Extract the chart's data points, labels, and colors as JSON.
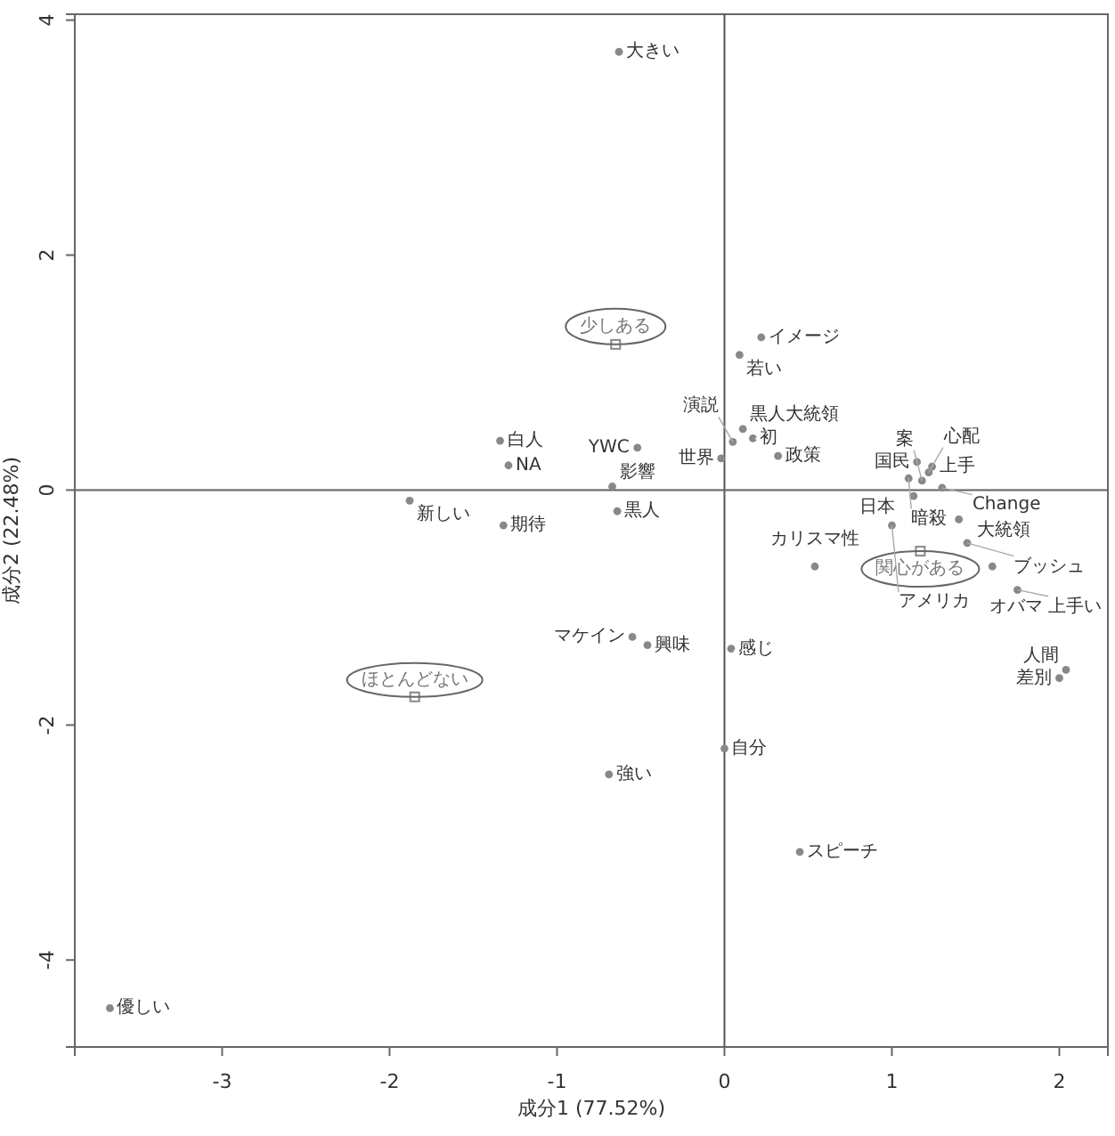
{
  "chart_data": {
    "type": "scatter",
    "xlabel": "成分1 (77.52%)",
    "ylabel": "成分2 (22.48%)",
    "xlim": [
      -3.88,
      2.29
    ],
    "ylim": [
      -4.74,
      4.05
    ],
    "xticks": [
      -3,
      -2,
      -1,
      0,
      1,
      2
    ],
    "yticks": [
      -4,
      -2,
      0,
      2,
      4
    ],
    "grid": false,
    "ref_lines": [
      {
        "axis": "x",
        "value": 0,
        "color": "#555555"
      },
      {
        "axis": "y",
        "value": 0,
        "color": "#606060"
      }
    ],
    "series": [
      {
        "color": "#888888",
        "marker": "circle",
        "x": [
          -0.63,
          0.22,
          0.09,
          0.11,
          0.17,
          0.05,
          0.32,
          -0.02,
          -0.52,
          -1.34,
          -1.29,
          -0.67,
          -1.88,
          -1.32,
          -0.64,
          0.54,
          1.15,
          1.24,
          1.22,
          1.1,
          1.18,
          1.3,
          1.13,
          1.4,
          1.0,
          1.45,
          1.6,
          1.75,
          2.04,
          2.0,
          0.04,
          -0.55,
          -0.46,
          0.0,
          -0.69,
          0.45,
          -3.67
        ],
        "values": [
          3.73,
          1.3,
          1.15,
          0.52,
          0.44,
          0.41,
          0.29,
          0.27,
          0.36,
          0.42,
          0.21,
          0.03,
          -0.09,
          -0.3,
          -0.18,
          -0.65,
          0.24,
          0.2,
          0.15,
          0.1,
          0.08,
          0.02,
          -0.05,
          -0.25,
          -0.3,
          -0.45,
          -0.65,
          -0.85,
          -1.53,
          -1.6,
          -1.35,
          -1.25,
          -1.32,
          -2.2,
          -2.42,
          -3.08,
          -4.41
        ]
      },
      {
        "color": "#888888",
        "marker": "square",
        "x": [
          -0.65,
          1.17,
          -1.85
        ],
        "values": [
          1.24,
          -0.52,
          -1.76
        ]
      }
    ],
    "annotations": [
      {
        "text": "大きい",
        "x": -0.63,
        "y": 3.73
      },
      {
        "text": "イメージ",
        "x": 0.22,
        "y": 1.3
      },
      {
        "text": "若い",
        "x": 0.09,
        "y": 1.15
      },
      {
        "text": "黒人大統領",
        "x": 0.11,
        "y": 0.52
      },
      {
        "text": "初",
        "x": 0.17,
        "y": 0.44
      },
      {
        "text": "演説",
        "x": 0.05,
        "y": 0.41
      },
      {
        "text": "政策",
        "x": 0.32,
        "y": 0.29
      },
      {
        "text": "世界",
        "x": -0.02,
        "y": 0.27
      },
      {
        "text": "YWC",
        "x": -0.52,
        "y": 0.36
      },
      {
        "text": "白人",
        "x": -1.34,
        "y": 0.42
      },
      {
        "text": "NA",
        "x": -1.29,
        "y": 0.21
      },
      {
        "text": "影響",
        "x": -0.67,
        "y": 0.03
      },
      {
        "text": "新しい",
        "x": -1.88,
        "y": -0.09
      },
      {
        "text": "期待",
        "x": -1.32,
        "y": -0.3
      },
      {
        "text": "黒人",
        "x": -0.64,
        "y": -0.18
      },
      {
        "text": "カリスマ性",
        "x": 0.54,
        "y": -0.65
      },
      {
        "text": "国民",
        "x": 1.15,
        "y": 0.24
      },
      {
        "text": "上手",
        "x": 1.24,
        "y": 0.2
      },
      {
        "text": "心配",
        "x": 1.22,
        "y": 0.15
      },
      {
        "text": "暗殺",
        "x": 1.1,
        "y": 0.1
      },
      {
        "text": "案",
        "x": 1.18,
        "y": 0.08
      },
      {
        "text": "Change",
        "x": 1.3,
        "y": 0.02
      },
      {
        "text": "日本",
        "x": 1.13,
        "y": -0.05
      },
      {
        "text": "大統領",
        "x": 1.4,
        "y": -0.25
      },
      {
        "text": "アメリカ",
        "x": 1.0,
        "y": -0.3
      },
      {
        "text": "ブッシュ",
        "x": 1.45,
        "y": -0.45
      },
      {
        "text": "オバマ",
        "x": 1.6,
        "y": -0.65
      },
      {
        "text": "上手い",
        "x": 1.75,
        "y": -0.85
      },
      {
        "text": "人間",
        "x": 2.04,
        "y": -1.53
      },
      {
        "text": "差別",
        "x": 2.0,
        "y": -1.6
      },
      {
        "text": "感じ",
        "x": 0.04,
        "y": -1.35
      },
      {
        "text": "マケイン",
        "x": -0.55,
        "y": -1.25
      },
      {
        "text": "興味",
        "x": -0.46,
        "y": -1.32
      },
      {
        "text": "自分",
        "x": 0.0,
        "y": -2.2
      },
      {
        "text": "強い",
        "x": -0.69,
        "y": -2.42
      },
      {
        "text": "スピーチ",
        "x": 0.45,
        "y": -3.08
      },
      {
        "text": "優しい",
        "x": -3.67,
        "y": -4.41
      },
      {
        "text": "少しある",
        "x": -0.65,
        "y": 1.24
      },
      {
        "text": "関心がある",
        "x": 1.17,
        "y": -0.52
      },
      {
        "text": "ほとんどない",
        "x": -1.85,
        "y": -1.76
      }
    ]
  }
}
